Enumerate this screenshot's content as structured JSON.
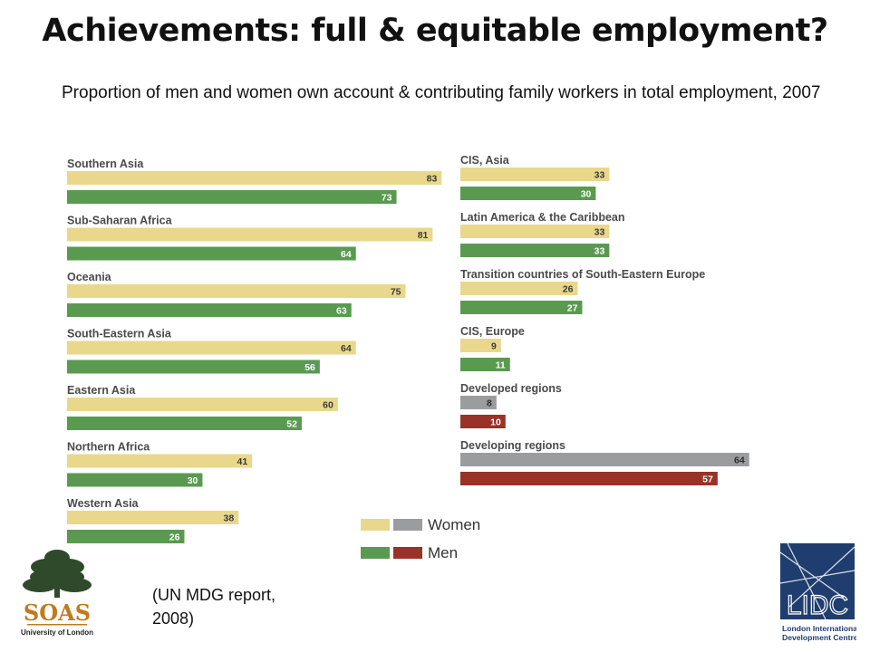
{
  "title": "Achievements: full & equitable employment?",
  "subtitle": "Proportion of men and women own account  & contributing family workers in total employment, 2007",
  "source_note_line1": "(UN MDG report,",
  "source_note_line2": "2008)",
  "logos": {
    "soas": {
      "text": "SOAS",
      "caption": "University of London"
    },
    "lidc": {
      "text": "LIDC",
      "caption_line1": "London International",
      "caption_line2": "Development Centre"
    }
  },
  "colors": {
    "women_regional": "#e9d88b",
    "men_regional": "#5a9a50",
    "women_aggregate": "#9a9c9e",
    "men_aggregate": "#9a3227",
    "label_text": "#4a4a4a",
    "value_text": "#3a3a3a"
  },
  "chart_data": {
    "type": "bar",
    "orientation": "horizontal",
    "xlim": [
      0,
      100
    ],
    "legend": {
      "position": "bottom-right",
      "entries": [
        "Women",
        "Men"
      ]
    },
    "series_names": [
      "Women",
      "Men"
    ],
    "columns": [
      {
        "groups": [
          {
            "category": "Southern Asia",
            "women": 83,
            "men": 73
          },
          {
            "category": "Sub-Saharan Africa",
            "women": 81,
            "men": 64
          },
          {
            "category": "Oceania",
            "women": 75,
            "men": 63
          },
          {
            "category": "South-Eastern Asia",
            "women": 64,
            "men": 56
          },
          {
            "category": "Eastern Asia",
            "women": 60,
            "men": 52
          },
          {
            "category": "Northern Africa",
            "women": 41,
            "men": 30
          },
          {
            "category": "Western Asia",
            "women": 38,
            "men": 26
          }
        ]
      },
      {
        "groups": [
          {
            "category": "CIS, Asia",
            "women": 33,
            "men": 30
          },
          {
            "category": "Latin America & the Caribbean",
            "women": 33,
            "men": 33
          },
          {
            "category": "Transition countries of South-Eastern Europe",
            "women": 26,
            "men": 27
          },
          {
            "category": "CIS, Europe",
            "women": 9,
            "men": 11
          },
          {
            "category": "Developed regions",
            "women": 8,
            "men": 10,
            "aggregate": true
          },
          {
            "category": "Developing regions",
            "women": 64,
            "men": 57,
            "aggregate": true
          }
        ]
      }
    ]
  }
}
